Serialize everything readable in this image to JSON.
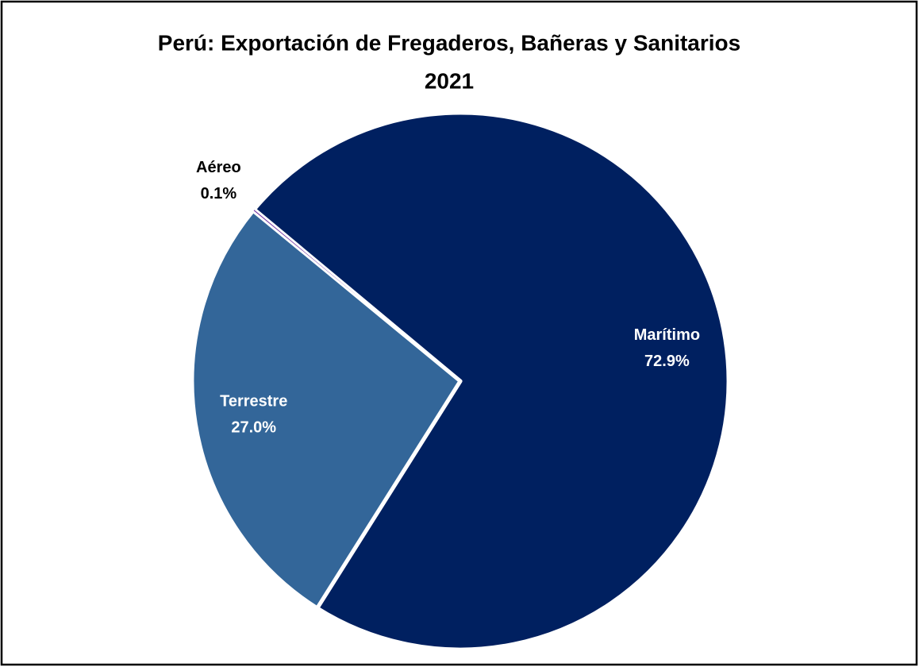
{
  "chart_data": {
    "type": "pie",
    "title": [
      "Perú: Exportación de Fregaderos, Bañeras y Sanitarios",
      "2021"
    ],
    "categories": [
      "Marítimo",
      "Terrestre",
      "Aéreo"
    ],
    "values": [
      72.9,
      27.0,
      0.1
    ],
    "value_labels": [
      "72.9%",
      "27.0%",
      "0.1%"
    ],
    "colors": [
      "#002060",
      "#336699",
      "#7030a0"
    ]
  }
}
